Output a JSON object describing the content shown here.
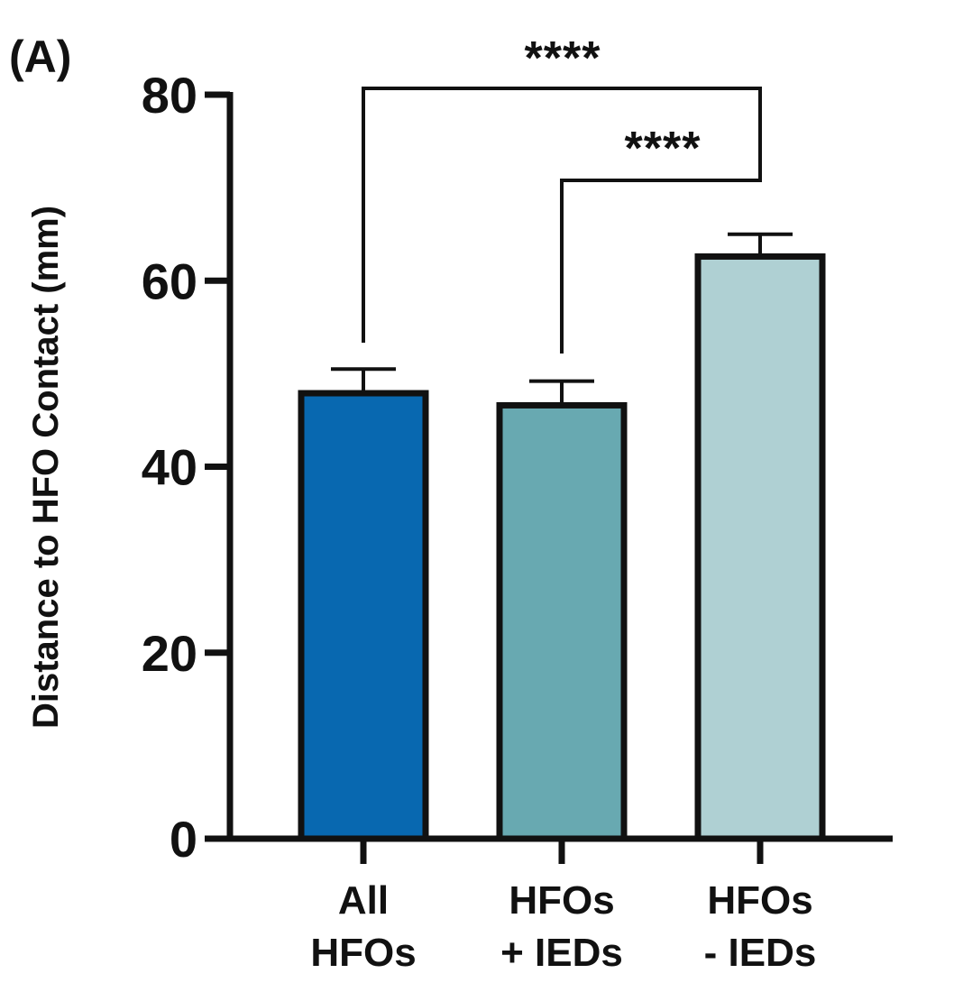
{
  "panel_label": "(A)",
  "chart_data": {
    "type": "bar",
    "title": "",
    "xlabel": "",
    "ylabel": "Distance to HFO Contact (mm)",
    "ylim": [
      0,
      80
    ],
    "yticks": [
      0,
      20,
      40,
      60,
      80
    ],
    "categories": [
      [
        "All",
        "HFOs"
      ],
      [
        "HFOs",
        "+ IEDs"
      ],
      [
        "HFOs",
        "- IEDs"
      ]
    ],
    "values": [
      47.9,
      46.6,
      62.6
    ],
    "error_upper": [
      2.6,
      2.6,
      2.4
    ],
    "colors": [
      "#0868b0",
      "#68a9b1",
      "#afd0d3"
    ],
    "grid": false,
    "legend": "none",
    "significance": [
      {
        "from": 0,
        "to": 2,
        "label": "****"
      },
      {
        "from": 1,
        "to": 2,
        "label": "****"
      }
    ]
  }
}
